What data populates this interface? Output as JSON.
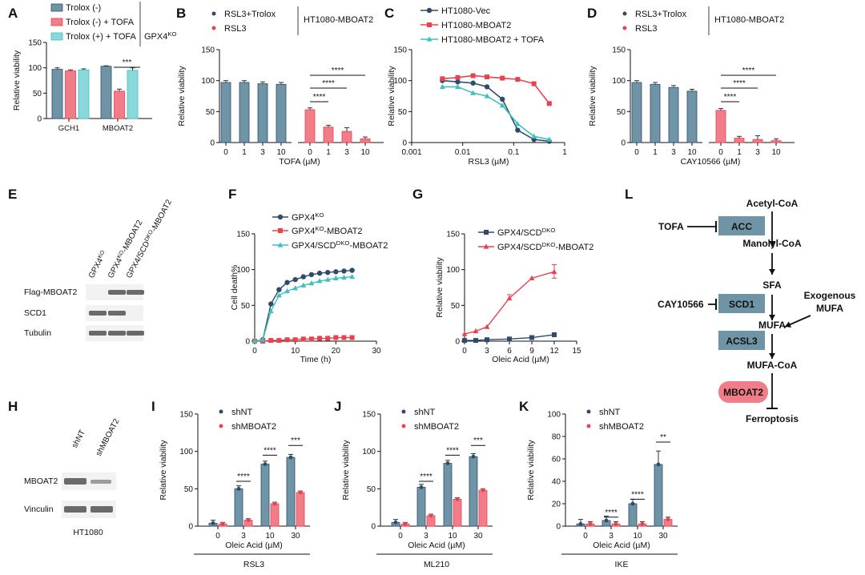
{
  "colors": {
    "navy": "#2e4b6b",
    "steel": "#5f8aa3",
    "red": "#e8424e",
    "pink": "#f07d87",
    "teal": "#3fbfbe",
    "lightteal": "#8ad8d9",
    "slate": "#6e94a6",
    "blot": "#6a6a6a"
  },
  "chart_data": [
    {
      "panel": "A",
      "type": "bar",
      "categories": [
        "GCH1",
        "MBOAT2"
      ],
      "series": [
        {
          "name": "Trolox (-)",
          "values": [
            97,
            103
          ]
        },
        {
          "name": "Trolox (-) + TOFA",
          "values": [
            94,
            54
          ]
        },
        {
          "name": "Trolox (+) + TOFA",
          "values": [
            96,
            95
          ]
        }
      ],
      "errors": [
        [
          3,
          1
        ],
        [
          2,
          4
        ],
        [
          2,
          5
        ]
      ],
      "ylabel": "Relative viability",
      "ylim": [
        0,
        150
      ],
      "yticks": [
        "0",
        "50",
        "100",
        "150"
      ],
      "legend_title": "GPX4",
      "legend_title_sup": "KO",
      "annotations": [
        {
          "text": "***"
        }
      ]
    },
    {
      "panel": "B",
      "type": "bar",
      "title": "HT1080-MBOAT2",
      "categories": [
        "0",
        "1",
        "3",
        "10"
      ],
      "series": [
        {
          "name": "RSL3+Trolox",
          "values": [
            97,
            97,
            95,
            94
          ]
        },
        {
          "name": "RSL3",
          "values": [
            53,
            25,
            18,
            6
          ]
        }
      ],
      "xlabel": "TOFA (µM)",
      "ylabel": "Relative viability",
      "ylim": [
        0,
        150
      ],
      "yticks": [
        "0",
        "50",
        "100",
        "150"
      ],
      "annotations": [
        {
          "text": "****"
        },
        {
          "text": "****"
        },
        {
          "text": "****"
        }
      ]
    },
    {
      "panel": "C",
      "type": "line",
      "x_scale": "log",
      "xlabel": "RSL3 (µM)",
      "ylabel": "Relative viability",
      "ylim": [
        0,
        150
      ],
      "yticks": [
        "0",
        "50",
        "100",
        "150"
      ],
      "xticks": [
        "0.001",
        "0.01",
        "0.1",
        "1"
      ],
      "series": [
        {
          "name": "HT1080-Vec",
          "x": [
            0.004,
            0.008,
            0.016,
            0.03,
            0.06,
            0.12,
            0.25,
            0.5
          ],
          "y": [
            100,
            98,
            96,
            90,
            70,
            20,
            5,
            2
          ]
        },
        {
          "name": "HT1080-MBOAT2",
          "x": [
            0.004,
            0.008,
            0.016,
            0.03,
            0.06,
            0.12,
            0.25,
            0.5
          ],
          "y": [
            103,
            105,
            108,
            106,
            104,
            102,
            95,
            63
          ]
        },
        {
          "name": "HT1080-MBOAT2 + TOFA",
          "x": [
            0.004,
            0.008,
            0.016,
            0.03,
            0.06,
            0.12,
            0.25,
            0.5
          ],
          "y": [
            90,
            90,
            80,
            75,
            60,
            30,
            10,
            5
          ]
        }
      ]
    },
    {
      "panel": "D",
      "type": "bar",
      "title": "HT1080-MBOAT2",
      "categories": [
        "0",
        "1",
        "3",
        "10"
      ],
      "series": [
        {
          "name": "RSL3+Trolox",
          "values": [
            97,
            94,
            89,
            83
          ]
        },
        {
          "name": "RSL3",
          "values": [
            52,
            7,
            5,
            3
          ]
        }
      ],
      "xlabel": "CAY10566 (µM)",
      "ylabel": "Relative viability",
      "ylim": [
        0,
        150
      ],
      "yticks": [
        "0",
        "50",
        "100",
        "150"
      ],
      "annotations": [
        {
          "text": "****"
        },
        {
          "text": "****"
        },
        {
          "text": "****"
        }
      ]
    },
    {
      "panel": "F",
      "type": "line",
      "xlabel": "Time (h)",
      "ylabel": "Cell death%",
      "ylim": [
        0,
        150
      ],
      "yticks": [
        "0",
        "50",
        "100",
        "150"
      ],
      "xticks": [
        "0",
        "10",
        "20",
        "30"
      ],
      "series": [
        {
          "name": "GPX4",
          "sup": "KO",
          "x": [
            0,
            2,
            4,
            6,
            8,
            10,
            12,
            14,
            16,
            18,
            20,
            22,
            24
          ],
          "y": [
            0,
            2,
            52,
            72,
            82,
            86,
            90,
            93,
            95,
            96,
            97,
            98,
            99
          ]
        },
        {
          "name": "GPX4",
          "sup": "KO",
          "suffix": "-MBOAT2",
          "x": [
            0,
            2,
            4,
            6,
            8,
            10,
            12,
            14,
            16,
            18,
            20,
            22,
            24
          ],
          "y": [
            0,
            0,
            1,
            1,
            2,
            2,
            3,
            3,
            4,
            4,
            5,
            5,
            5
          ]
        },
        {
          "name": "GPX4/SCD",
          "sup": "DKO",
          "suffix": "-MBOAT2",
          "x": [
            0,
            2,
            4,
            6,
            8,
            10,
            12,
            14,
            16,
            18,
            20,
            22,
            24
          ],
          "y": [
            0,
            2,
            42,
            64,
            70,
            74,
            78,
            81,
            84,
            86,
            88,
            89,
            90
          ]
        }
      ]
    },
    {
      "panel": "G",
      "type": "line",
      "xlabel": "Oleic Acid (µM)",
      "ylabel": "Relative viability",
      "ylim": [
        0,
        150
      ],
      "yticks": [
        "0",
        "50",
        "100",
        "150"
      ],
      "xticks": [
        "0",
        "3",
        "6",
        "9",
        "12",
        "15"
      ],
      "series": [
        {
          "name": "GPX4/SCD",
          "sup": "DKO",
          "suffix": "",
          "x": [
            0,
            1.5,
            3,
            6,
            9,
            12
          ],
          "y": [
            1,
            1,
            2,
            3,
            5,
            9
          ]
        },
        {
          "name": "GPX4/SCD",
          "sup": "DKO",
          "suffix": "-MBOAT2",
          "x": [
            0,
            1.5,
            3,
            6,
            9,
            12
          ],
          "y": [
            10,
            14,
            20,
            60,
            88,
            97
          ]
        }
      ]
    },
    {
      "panel": "I",
      "type": "bar",
      "categories": [
        "0",
        "3",
        "10",
        "30"
      ],
      "series": [
        {
          "name": "shNT",
          "values": [
            4,
            50,
            83,
            92
          ]
        },
        {
          "name": "shMBOAT2",
          "values": [
            3,
            8,
            30,
            45
          ]
        }
      ],
      "xlabel": "Oleic Acid (µM)",
      "group_label": "RSL3",
      "ylabel": "Relative viability",
      "ylim": [
        0,
        150
      ],
      "yticks": [
        "0",
        "50",
        "100",
        "150"
      ],
      "annotations": [
        {
          "text": "****"
        },
        {
          "text": "****"
        },
        {
          "text": "***"
        }
      ]
    },
    {
      "panel": "J",
      "type": "bar",
      "categories": [
        "0",
        "3",
        "10",
        "30"
      ],
      "series": [
        {
          "name": "shNT",
          "values": [
            5,
            52,
            84,
            93
          ]
        },
        {
          "name": "shMBOAT2",
          "values": [
            3,
            14,
            36,
            48
          ]
        }
      ],
      "xlabel": "Oleic Acid (µM)",
      "group_label": "ML210",
      "ylabel": "Relative viability",
      "ylim": [
        0,
        150
      ],
      "yticks": [
        "0",
        "50",
        "100",
        "150"
      ],
      "annotations": [
        {
          "text": "****"
        },
        {
          "text": "****"
        },
        {
          "text": "***"
        }
      ]
    },
    {
      "panel": "K",
      "type": "bar",
      "categories": [
        "0",
        "3",
        "10",
        "30"
      ],
      "series": [
        {
          "name": "shNT",
          "values": [
            2,
            5,
            20,
            55
          ]
        },
        {
          "name": "shMBOAT2",
          "values": [
            2,
            2,
            2,
            6
          ]
        }
      ],
      "xlabel": "Oleic Acid (µM)",
      "group_label": "IKE",
      "ylabel": "Relative viability",
      "ylim": [
        0,
        100
      ],
      "yticks": [
        "0",
        "20",
        "40",
        "60",
        "80",
        "100"
      ],
      "annotations": [
        {
          "text": "****"
        },
        {
          "text": "****"
        },
        {
          "text": "**"
        }
      ]
    }
  ],
  "blots": {
    "E": {
      "lanes": [
        {
          "text": "GPX4",
          "sup": "KO",
          "suffix": ""
        },
        {
          "text": "GPX4",
          "sup": "KO",
          "suffix": "-MBOAT2"
        },
        {
          "text": "GPX4/SCD",
          "sup": "DKO",
          "suffix": "-MBOAT2"
        }
      ],
      "rows": [
        "Flag-MBOAT2",
        "SCD1",
        "Tubulin"
      ]
    },
    "H": {
      "lanes": [
        "shNT",
        "shMBOAT2"
      ],
      "rows": [
        "MBOAT2",
        "Vinculin"
      ],
      "caption": "HT1080"
    }
  },
  "pathway": {
    "nodes": [
      "Acetyl-CoA",
      "Manolyl-CoA",
      "SFA",
      "MUFA",
      "MUFA-CoA",
      "Ferroptosis"
    ],
    "enzymes": [
      "ACC",
      "SCD1",
      "ACSL3",
      "MBOAT2"
    ],
    "inhibitors": [
      "TOFA",
      "CAY10566"
    ],
    "exogenous": [
      "Exogenous",
      "MUFA"
    ]
  }
}
